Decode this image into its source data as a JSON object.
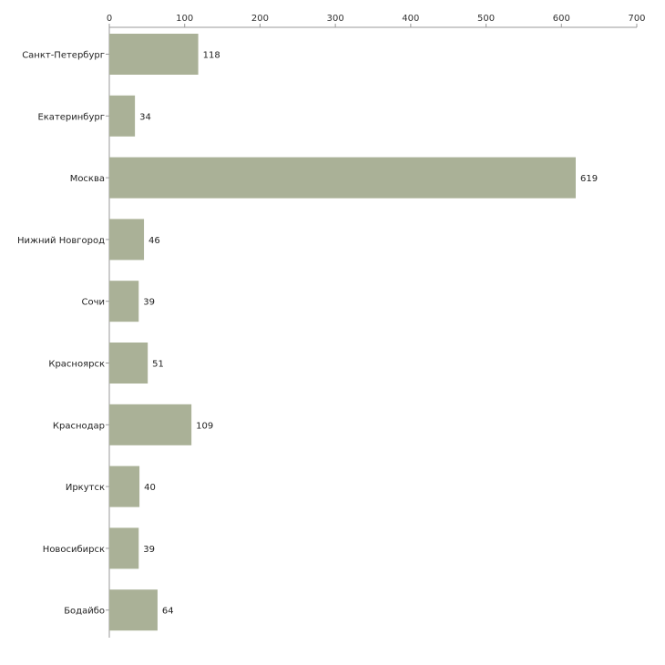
{
  "chart_data": {
    "type": "bar",
    "orientation": "horizontal",
    "title": "",
    "xlabel": "",
    "ylabel": "",
    "xlim": [
      0,
      700
    ],
    "xticks": [
      0,
      100,
      200,
      300,
      400,
      500,
      600,
      700
    ],
    "x_axis_position": "top",
    "grid": false,
    "bar_color": "#aab197",
    "categories": [
      "Санкт-Петербург",
      "Екатеринбург",
      "Москва",
      "Нижний Новгород",
      "Сочи",
      "Красноярск",
      "Краснодар",
      "Иркутск",
      "Новосибирск",
      "Бодайбо"
    ],
    "values": [
      118,
      34,
      619,
      46,
      39,
      51,
      109,
      40,
      39,
      64
    ]
  }
}
